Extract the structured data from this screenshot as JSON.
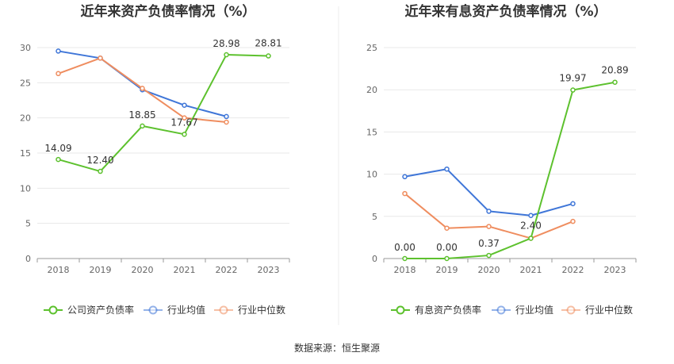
{
  "source_note": "数据来源：恒生聚源",
  "chart_data": [
    {
      "type": "line",
      "title": "近年来资产负债率情况（%）",
      "xlabel": "",
      "ylabel": "",
      "categories": [
        "2018",
        "2019",
        "2020",
        "2021",
        "2022",
        "2023"
      ],
      "ylim": [
        0,
        30
      ],
      "yticks": [
        "0",
        "5",
        "10",
        "15",
        "20",
        "25",
        "30"
      ],
      "grid": true,
      "legend_position": "bottom",
      "series": [
        {
          "name": "公司资产负债率",
          "color": "#5dc12e",
          "values": [
            14.09,
            12.4,
            18.85,
            17.67,
            28.98,
            28.81
          ],
          "labels": [
            "14.09",
            "12.40",
            "18.85",
            "17.67",
            "28.98",
            "28.81"
          ]
        },
        {
          "name": "行业均值",
          "color": "#3f76d8",
          "values": [
            29.5,
            28.5,
            24.0,
            21.8,
            20.2,
            null
          ]
        },
        {
          "name": "行业中位数",
          "color": "#ef8d5f",
          "values": [
            26.3,
            28.5,
            24.2,
            20.0,
            19.4,
            null
          ]
        }
      ]
    },
    {
      "type": "line",
      "title": "近年来有息资产负债率情况（%）",
      "xlabel": "",
      "ylabel": "",
      "categories": [
        "2018",
        "2019",
        "2020",
        "2021",
        "2022",
        "2023"
      ],
      "ylim": [
        0,
        25
      ],
      "yticks": [
        "0",
        "5",
        "10",
        "15",
        "20",
        "25"
      ],
      "grid": true,
      "legend_position": "bottom",
      "series": [
        {
          "name": "有息资产负债率",
          "color": "#5dc12e",
          "values": [
            0.0,
            0.0,
            0.37,
            2.4,
            19.97,
            20.89
          ],
          "labels": [
            "0.00",
            "0.00",
            "0.37",
            "2.40",
            "19.97",
            "20.89"
          ]
        },
        {
          "name": "行业均值",
          "color": "#3f76d8",
          "values": [
            9.7,
            10.6,
            5.6,
            5.1,
            6.5,
            null
          ]
        },
        {
          "name": "行业中位数",
          "color": "#ef8d5f",
          "values": [
            7.7,
            3.6,
            3.8,
            2.4,
            4.4,
            null
          ]
        }
      ]
    }
  ]
}
